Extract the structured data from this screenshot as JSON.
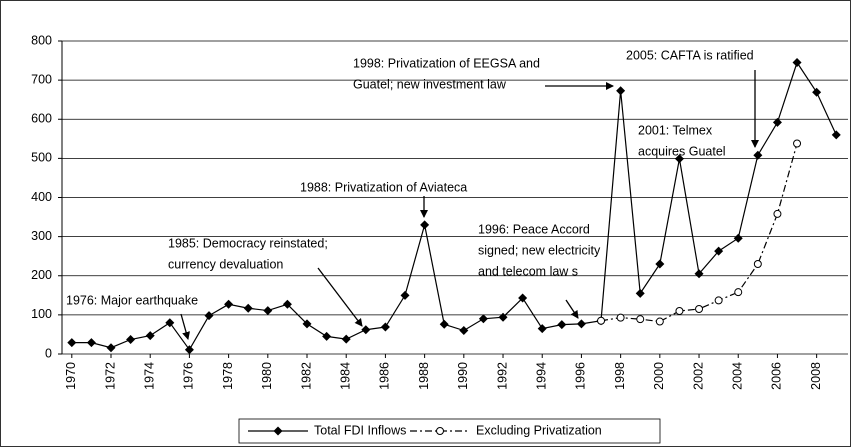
{
  "chart_data": {
    "type": "line",
    "x": [
      1970,
      1971,
      1972,
      1973,
      1974,
      1975,
      1976,
      1977,
      1978,
      1979,
      1980,
      1981,
      1982,
      1983,
      1984,
      1985,
      1986,
      1987,
      1988,
      1989,
      1990,
      1991,
      1992,
      1993,
      1994,
      1995,
      1996,
      1997,
      1998,
      1999,
      2000,
      2001,
      2002,
      2003,
      2004,
      2005,
      2006,
      2007,
      2008,
      2009
    ],
    "series": [
      {
        "name": "Total FDI Inflows",
        "color": "#000000",
        "marker": "diamond",
        "dash": "solid",
        "values": [
          29,
          29,
          16,
          37,
          47,
          80,
          11,
          98,
          127,
          117,
          111,
          127,
          77,
          45,
          38,
          62,
          69,
          150,
          330,
          76,
          60,
          90,
          94,
          143,
          65,
          75,
          77,
          85,
          673,
          155,
          230,
          499,
          205,
          263,
          296,
          508,
          592,
          745,
          669,
          560
        ]
      },
      {
        "name": "Excluding Privatization",
        "color": "#000000",
        "marker": "open-circle",
        "dash": "dash-dot",
        "values": [
          null,
          null,
          null,
          null,
          null,
          null,
          null,
          null,
          null,
          null,
          null,
          null,
          null,
          null,
          null,
          null,
          null,
          null,
          null,
          null,
          null,
          null,
          null,
          null,
          null,
          null,
          null,
          85,
          93,
          89,
          83,
          110,
          115,
          137,
          158,
          230,
          358,
          538,
          null,
          null
        ]
      }
    ],
    "xlim": [
      1969.5,
      2009.6
    ],
    "xticks": [
      1970,
      1972,
      1974,
      1976,
      1978,
      1980,
      1982,
      1984,
      1986,
      1988,
      1990,
      1992,
      1994,
      1996,
      1998,
      2000,
      2002,
      2004,
      2006,
      2008
    ],
    "ylim": [
      0,
      800
    ],
    "yticks": [
      0,
      100,
      200,
      300,
      400,
      500,
      600,
      700,
      800
    ],
    "grid": true,
    "legend": "bottom",
    "annotations": [
      {
        "text": [
          "1998: Privatization of EEGSA and",
          "Guatel; new investment law"
        ]
      },
      {
        "text": [
          "2005: CAFTA is ratified"
        ]
      },
      {
        "text": [
          "2001: Telmex",
          "acquires Guatel"
        ]
      },
      {
        "text": [
          "1988: Privatization of Aviateca"
        ]
      },
      {
        "text": [
          "1996: Peace Accord",
          "signed; new electricity",
          "and telecom law s"
        ]
      },
      {
        "text": [
          "1985: Democracy reinstated;",
          "currency devaluation"
        ]
      },
      {
        "text": [
          "1976: Major earthquake"
        ]
      }
    ]
  }
}
